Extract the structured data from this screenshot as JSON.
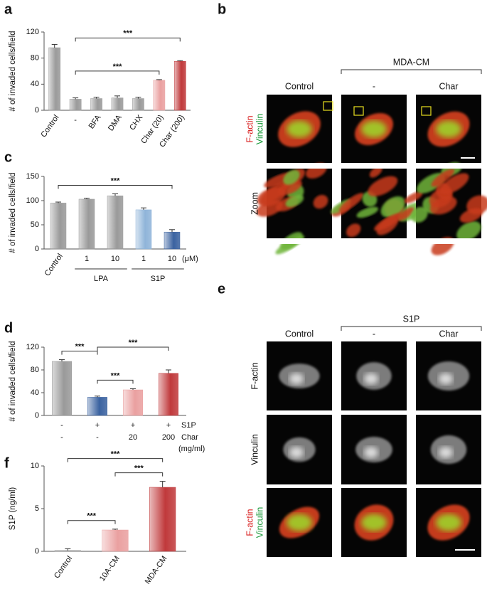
{
  "chart_data": [
    {
      "type": "bar",
      "label": "a",
      "y_label": "# of invaded cells/field",
      "categories": [
        "Control",
        "-",
        "BFA",
        "DMA",
        "CHX",
        "Char (20)",
        "Char (200)"
      ],
      "values": [
        96,
        17,
        18,
        19,
        18,
        46,
        75
      ],
      "errors": [
        5,
        2,
        2,
        3,
        2,
        1,
        1
      ],
      "colors": [
        "#9a9a9a",
        "#9a9a9a",
        "#9a9a9a",
        "#9a9a9a",
        "#9a9a9a",
        "#eaa0a0",
        "#c0393b"
      ],
      "ylim": [
        0,
        120
      ],
      "yticks": [
        0,
        40,
        80,
        120
      ],
      "brackets": [
        {
          "from": 1,
          "to": 5,
          "label": "***"
        },
        {
          "from": 1,
          "to": 6,
          "label": "***"
        }
      ]
    },
    {
      "type": "bar",
      "label": "c",
      "y_label": "# of invaded cells/field",
      "categories": [
        "Control",
        "1",
        "10",
        "1",
        "10"
      ],
      "unit": "(μM)",
      "groups": [
        {
          "name": "LPA",
          "from": 1,
          "to": 2
        },
        {
          "name": "S1P",
          "from": 3,
          "to": 4
        }
      ],
      "values": [
        95,
        103,
        110,
        81,
        35
      ],
      "errors": [
        2,
        2,
        4,
        4,
        5
      ],
      "colors": [
        "#9a9a9a",
        "#9a9a9a",
        "#9a9a9a",
        "#8fb4d9",
        "#3a62a0"
      ],
      "ylim": [
        0,
        150
      ],
      "yticks": [
        0,
        50,
        100,
        150
      ],
      "brackets": [
        {
          "from": 0,
          "to": 4,
          "label": "***"
        }
      ]
    },
    {
      "type": "bar",
      "label": "d",
      "y_label": "# of invaded cells/field",
      "category_rows": [
        {
          "name": "S1P",
          "labels": [
            "-",
            "+",
            "+",
            "+"
          ]
        },
        {
          "name": "Char",
          "unit": "(mg/ml)",
          "labels": [
            "-",
            "-",
            "20",
            "200"
          ]
        }
      ],
      "values": [
        95,
        32,
        45,
        74
      ],
      "errors": [
        3,
        2,
        2,
        6
      ],
      "colors": [
        "#9a9a9a",
        "#3a62a0",
        "#eaa0a0",
        "#c0393b"
      ],
      "ylim": [
        0,
        120
      ],
      "yticks": [
        0,
        40,
        80,
        120
      ],
      "brackets": [
        {
          "from": 1,
          "to": 2,
          "label": "***"
        },
        {
          "from": 0,
          "to": 1,
          "label": "***"
        },
        {
          "from": 1,
          "to": 3,
          "label": "***"
        }
      ]
    },
    {
      "type": "bar",
      "label": "f",
      "y_label": "S1P (ng/ml)",
      "categories": [
        "Control",
        "10A-CM",
        "MDA-CM"
      ],
      "values": [
        0.1,
        2.5,
        7.5
      ],
      "errors": [
        0.2,
        0.1,
        0.7
      ],
      "colors": [
        "#9a9a9a",
        "#eaa0a0",
        "#c0393b"
      ],
      "ylim": [
        0,
        10
      ],
      "yticks": [
        0,
        5,
        10
      ],
      "brackets": [
        {
          "from": 0,
          "to": 1,
          "label": "***"
        },
        {
          "from": 1,
          "to": 2,
          "label": "***"
        },
        {
          "from": 0,
          "to": 2,
          "label": "***"
        }
      ]
    }
  ],
  "panels": [
    {
      "letter": "b",
      "group": "MDA-CM",
      "columns": [
        "Control",
        "-",
        "Char"
      ],
      "rows": [
        {
          "labels": [
            "F-actin",
            "Vinculin"
          ],
          "style": "merge"
        },
        {
          "labels": [
            "Zoom"
          ],
          "style": "zoom"
        }
      ]
    },
    {
      "letter": "e",
      "group": "S1P",
      "columns": [
        "Control",
        "-",
        "Char"
      ],
      "rows": [
        {
          "labels": [
            "F-actin"
          ],
          "style": "gray"
        },
        {
          "labels": [
            "Vinculin"
          ],
          "style": "gray"
        },
        {
          "labels": [
            "F-actin",
            "Vinculin"
          ],
          "style": "merge"
        }
      ]
    }
  ]
}
